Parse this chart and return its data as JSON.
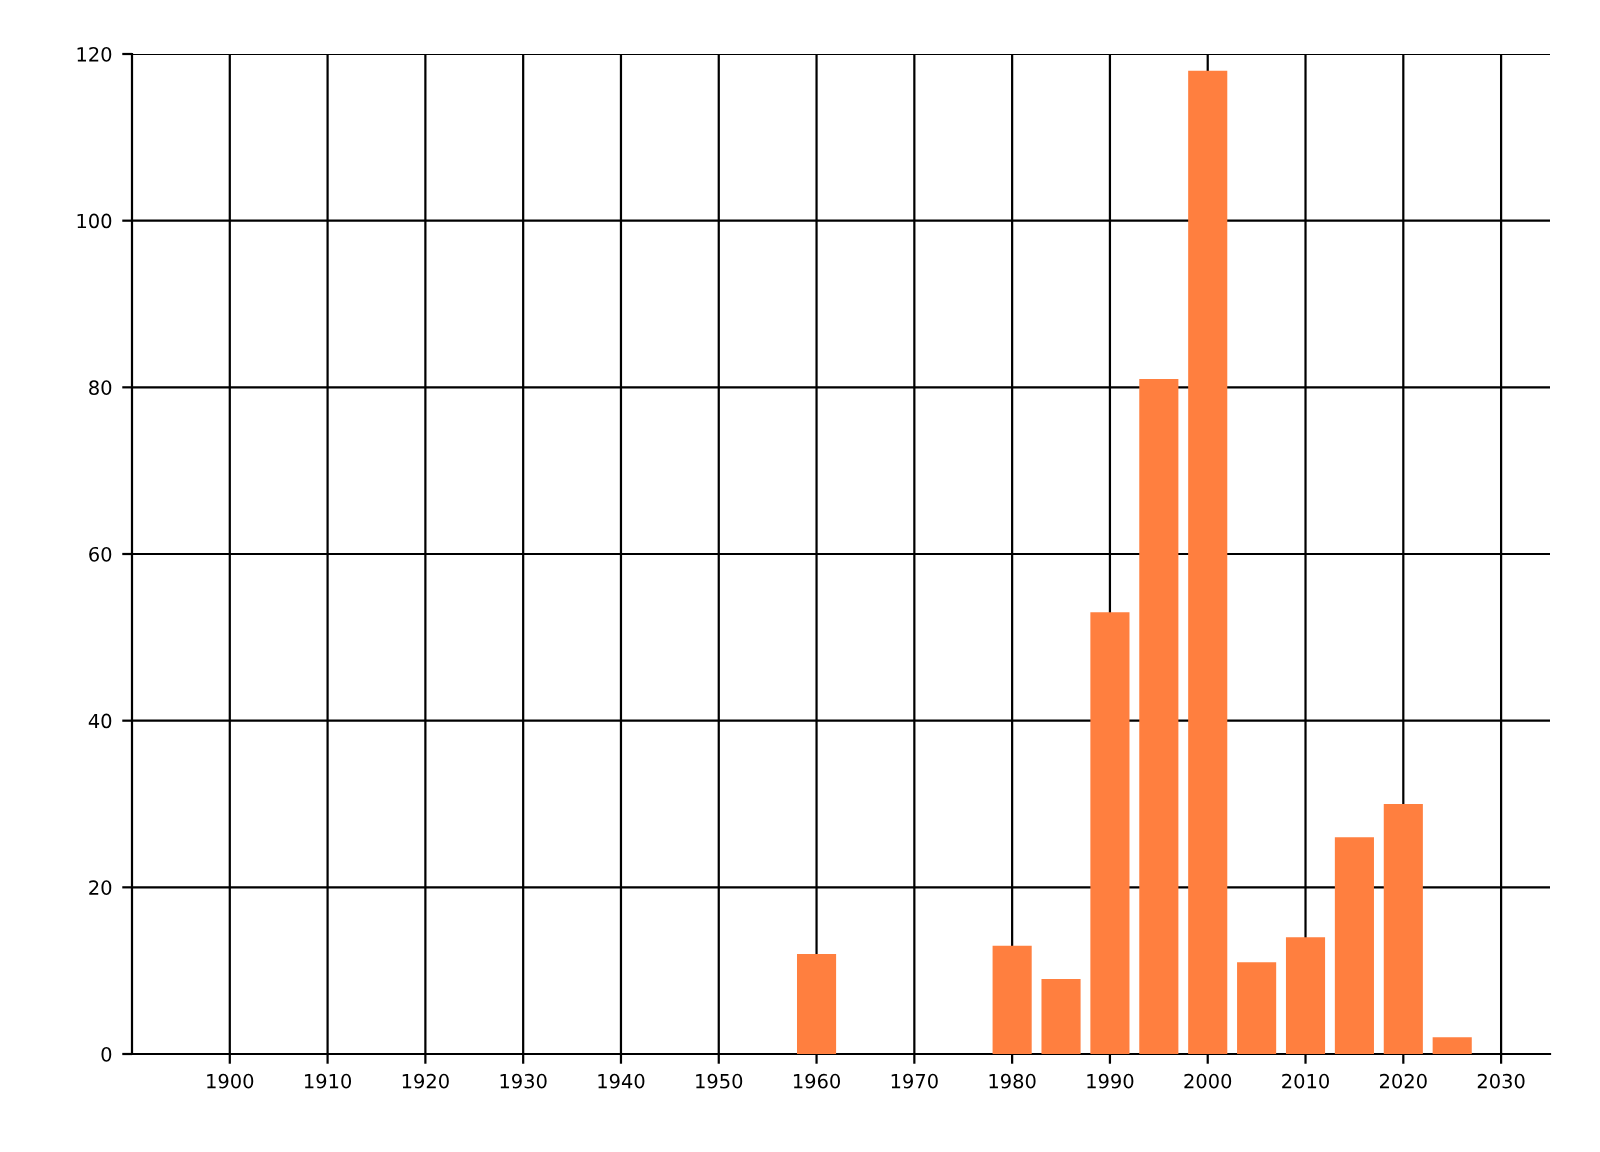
{
  "chart_data": {
    "type": "bar",
    "x": [
      1960,
      1980,
      1985,
      1990,
      1995,
      2000,
      2005,
      2010,
      2015,
      2020,
      2025
    ],
    "values": [
      12,
      13,
      9,
      53,
      81,
      118,
      11,
      14,
      26,
      30,
      2
    ],
    "color": "#ff7f3f",
    "xlim": [
      1890,
      2035
    ],
    "xticks": [
      1900,
      1910,
      1920,
      1930,
      1940,
      1950,
      1960,
      1970,
      1980,
      1990,
      2000,
      2010,
      2020,
      2030
    ],
    "ylim": [
      0,
      120
    ],
    "yticks": [
      0,
      20,
      40,
      60,
      80,
      100,
      120
    ],
    "grid": true
  }
}
